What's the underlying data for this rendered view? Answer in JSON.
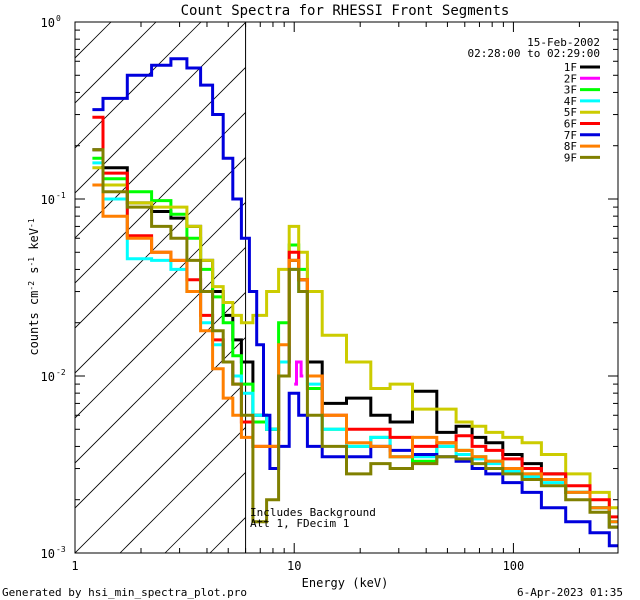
{
  "chart_data": {
    "type": "line",
    "title": "Count Spectra for RHESSI Front Segments",
    "xlabel": "Energy (keV)",
    "ylabel": "counts cm-2 s-1 keV-1",
    "x_scale": "log",
    "y_scale": "log",
    "xlim": [
      1.0,
      300
    ],
    "ylim": [
      0.001,
      1.0
    ],
    "x_ticks": [
      {
        "value": 1,
        "label": "1"
      },
      {
        "value": 10,
        "label": "10"
      },
      {
        "value": 100,
        "label": "100"
      }
    ],
    "y_ticks": [
      {
        "value": 1,
        "base": "10",
        "exp": "0"
      },
      {
        "value": 0.1,
        "base": "10",
        "exp": "-1"
      },
      {
        "value": 0.01,
        "base": "10",
        "exp": "-2"
      },
      {
        "value": 0.001,
        "base": "10",
        "exp": "-3"
      }
    ],
    "date": "15-Feb-2002",
    "time_range": "02:28:00 to 02:29:00",
    "hatched_region": {
      "x_from": 1.0,
      "x_to": 6.0
    },
    "annotation": [
      "Includes Background",
      "Att 1, FDecim 1"
    ],
    "footer_left": "Generated by hsi_min_spectra_plot.pro",
    "footer_right": "6-Apr-2023 01:35",
    "series": [
      {
        "name": "1F",
        "color": "#000000",
        "x": [
          1.2,
          1.5,
          2,
          2.5,
          3,
          3.5,
          4,
          4.5,
          5,
          5.5,
          6,
          7,
          8,
          9,
          10,
          11,
          12,
          15,
          20,
          25,
          30,
          40,
          50,
          60,
          70,
          80,
          100,
          120,
          150,
          200,
          250,
          300
        ],
        "values": [
          0.19,
          0.15,
          0.095,
          0.085,
          0.078,
          0.07,
          0.045,
          0.03,
          0.022,
          0.016,
          0.012,
          0.006,
          0.005,
          0.012,
          0.045,
          0.035,
          0.012,
          0.007,
          0.0075,
          0.006,
          0.0055,
          0.0082,
          0.0048,
          0.0052,
          0.0045,
          0.0042,
          0.0036,
          0.0032,
          0.0028,
          0.0022,
          0.0018,
          0.0014
        ]
      },
      {
        "name": "2F",
        "color": "#ff00ff",
        "x": [
          10,
          10.5,
          11
        ],
        "values": [
          0.009,
          0.012,
          0.01
        ]
      },
      {
        "name": "3F",
        "color": "#00ff00",
        "x": [
          1.2,
          1.5,
          2,
          2.5,
          3,
          3.5,
          4,
          4.5,
          5,
          5.5,
          6,
          7,
          8,
          9,
          10,
          11,
          12,
          15,
          20,
          25,
          30,
          40,
          50,
          60,
          70,
          80,
          100,
          120,
          150,
          200,
          250,
          300
        ],
        "values": [
          0.17,
          0.13,
          0.11,
          0.098,
          0.082,
          0.06,
          0.04,
          0.028,
          0.02,
          0.013,
          0.009,
          0.0055,
          0.005,
          0.02,
          0.055,
          0.04,
          0.0085,
          0.005,
          0.004,
          0.0045,
          0.0035,
          0.0033,
          0.004,
          0.0038,
          0.0035,
          0.0033,
          0.003,
          0.0028,
          0.0026,
          0.0022,
          0.0018,
          0.0015
        ]
      },
      {
        "name": "4F",
        "color": "#00ffff",
        "x": [
          1.2,
          1.5,
          2,
          2.5,
          3,
          3.5,
          4,
          4.5,
          5,
          5.5,
          6,
          7,
          8,
          9,
          10,
          11,
          12,
          15,
          20,
          25,
          30,
          40,
          50,
          60,
          70,
          80,
          100,
          120,
          150,
          200,
          250,
          300
        ],
        "values": [
          0.16,
          0.1,
          0.046,
          0.045,
          0.04,
          0.03,
          0.02,
          0.015,
          0.012,
          0.01,
          0.008,
          0.006,
          0.005,
          0.012,
          0.04,
          0.03,
          0.009,
          0.005,
          0.004,
          0.0045,
          0.0035,
          0.0035,
          0.004,
          0.0036,
          0.0034,
          0.0032,
          0.0029,
          0.0027,
          0.0025,
          0.0022,
          0.0018,
          0.0015
        ]
      },
      {
        "name": "5F",
        "color": "#cccc00",
        "x": [
          1.2,
          1.5,
          2,
          2.5,
          3,
          3.5,
          4,
          4.5,
          5,
          5.5,
          6,
          7,
          8,
          9,
          10,
          11,
          12,
          15,
          20,
          25,
          30,
          40,
          50,
          60,
          70,
          80,
          100,
          120,
          150,
          200,
          250,
          300
        ],
        "values": [
          0.15,
          0.12,
          0.095,
          0.09,
          0.09,
          0.07,
          0.045,
          0.032,
          0.026,
          0.022,
          0.02,
          0.022,
          0.03,
          0.04,
          0.07,
          0.05,
          0.03,
          0.017,
          0.012,
          0.0085,
          0.009,
          0.0065,
          0.0065,
          0.0055,
          0.0052,
          0.0048,
          0.0045,
          0.0042,
          0.0036,
          0.0028,
          0.0022,
          0.0018
        ]
      },
      {
        "name": "6F",
        "color": "#ff0000",
        "x": [
          1.2,
          1.5,
          2,
          2.5,
          3,
          3.5,
          4,
          4.5,
          5,
          5.5,
          6,
          7,
          8,
          9,
          10,
          11,
          12,
          15,
          20,
          25,
          30,
          40,
          50,
          60,
          70,
          80,
          100,
          120,
          150,
          200,
          250,
          300
        ],
        "values": [
          0.29,
          0.14,
          0.062,
          0.05,
          0.045,
          0.035,
          0.022,
          0.016,
          0.012,
          0.009,
          0.0055,
          0.004,
          0.004,
          0.01,
          0.05,
          0.035,
          0.01,
          0.006,
          0.005,
          0.005,
          0.0045,
          0.004,
          0.0042,
          0.0046,
          0.004,
          0.0038,
          0.0034,
          0.003,
          0.0028,
          0.0024,
          0.002,
          0.0016
        ]
      },
      {
        "name": "7F",
        "color": "#0000dd",
        "x": [
          1.2,
          1.5,
          2,
          2.5,
          3,
          3.5,
          4,
          4.5,
          5,
          5.5,
          6,
          6.5,
          7,
          7.5,
          8,
          9,
          10,
          11,
          12,
          15,
          20,
          25,
          30,
          40,
          50,
          60,
          70,
          80,
          100,
          120,
          150,
          200,
          250,
          300
        ],
        "values": [
          0.32,
          0.37,
          0.5,
          0.57,
          0.62,
          0.55,
          0.44,
          0.3,
          0.17,
          0.1,
          0.06,
          0.03,
          0.015,
          0.006,
          0.003,
          0.004,
          0.008,
          0.006,
          0.004,
          0.0035,
          0.0035,
          0.004,
          0.0038,
          0.0036,
          0.0035,
          0.0033,
          0.003,
          0.0028,
          0.0025,
          0.0022,
          0.0018,
          0.0015,
          0.0013,
          0.0011
        ]
      },
      {
        "name": "8F",
        "color": "#ff7f00",
        "x": [
          1.2,
          1.5,
          2,
          2.5,
          3,
          3.5,
          4,
          4.5,
          5,
          5.5,
          6,
          7,
          8,
          9,
          10,
          11,
          12,
          15,
          20,
          25,
          30,
          40,
          50,
          60,
          70,
          80,
          100,
          120,
          150,
          200,
          250,
          300
        ],
        "values": [
          0.12,
          0.08,
          0.06,
          0.05,
          0.045,
          0.03,
          0.018,
          0.011,
          0.0075,
          0.006,
          0.0045,
          0.004,
          0.004,
          0.015,
          0.045,
          0.035,
          0.01,
          0.006,
          0.0042,
          0.004,
          0.0035,
          0.0045,
          0.0042,
          0.0038,
          0.0035,
          0.0033,
          0.003,
          0.0028,
          0.0026,
          0.0022,
          0.0018,
          0.0015
        ]
      },
      {
        "name": "9F",
        "color": "#808000",
        "x": [
          1.2,
          1.5,
          2,
          2.5,
          3,
          3.5,
          4,
          4.5,
          5,
          5.5,
          6,
          7,
          8,
          9,
          10,
          11,
          12,
          15,
          20,
          25,
          30,
          40,
          50,
          60,
          70,
          80,
          100,
          120,
          150,
          200,
          250,
          300
        ],
        "values": [
          0.19,
          0.11,
          0.09,
          0.07,
          0.06,
          0.045,
          0.03,
          0.018,
          0.012,
          0.009,
          0.006,
          0.0015,
          0.002,
          0.01,
          0.04,
          0.03,
          0.006,
          0.004,
          0.0028,
          0.0032,
          0.003,
          0.0032,
          0.0035,
          0.0034,
          0.0032,
          0.003,
          0.0028,
          0.0026,
          0.0024,
          0.002,
          0.0017,
          0.0014
        ]
      }
    ]
  }
}
